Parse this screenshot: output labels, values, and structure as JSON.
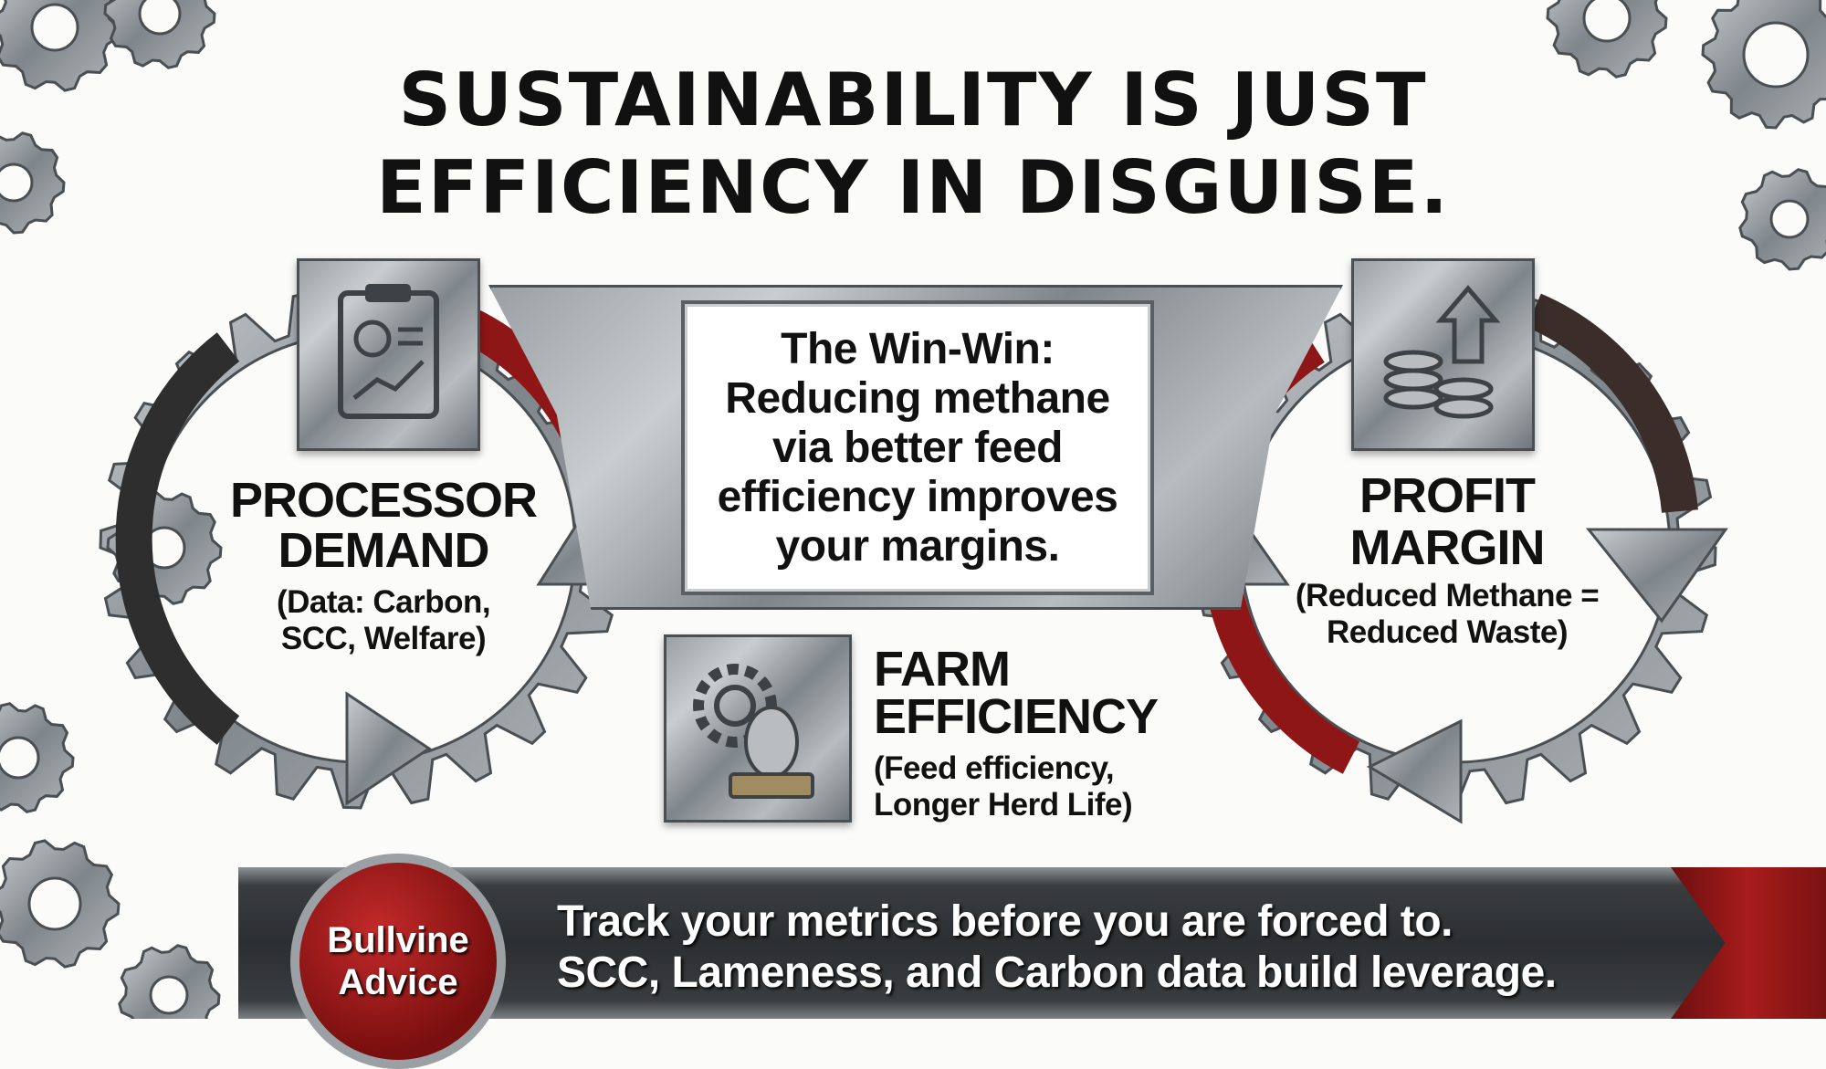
{
  "title": {
    "line1": "SUSTAINABILITY IS JUST",
    "line2": "EFFICIENCY IN DISGUISE."
  },
  "processor": {
    "icon": "clipboard-chart-icon",
    "heading1": "PROCESSOR",
    "heading2": "DEMAND",
    "sub1": "(Data: Carbon,",
    "sub2": "SCC, Welfare)"
  },
  "center": {
    "lines": [
      "The Win-Win:",
      "Reducing methane",
      "via better feed",
      "efficiency improves",
      "your margins."
    ]
  },
  "farm": {
    "icon": "gear-cow-feed-icon",
    "heading1": "FARM",
    "heading2": "EFFICIENCY",
    "sub1": "(Feed efficiency,",
    "sub2": "Longer Herd Life)"
  },
  "profit": {
    "icon": "coins-arrow-up-icon",
    "heading1": "PROFIT",
    "heading2": "MARGIN",
    "sub1": "(Reduced Methane =",
    "sub2": "Reduced Waste)"
  },
  "advice": {
    "badge1": "Bullvine",
    "badge2": "Advice",
    "line1": "Track your metrics before you are forced to.",
    "line2": "SCC, Lameness, and Carbon data build leverage."
  },
  "colors": {
    "accent_red": "#a81c1c",
    "steel": "#9aa0a4",
    "dark_banner": "#2c2f31"
  }
}
